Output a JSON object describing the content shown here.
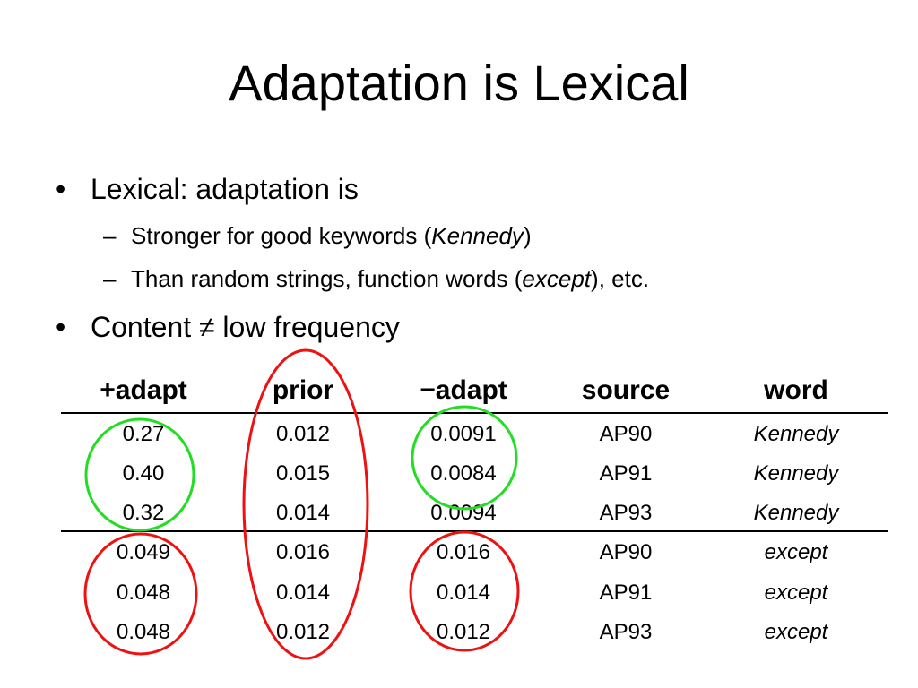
{
  "slide": {
    "title": "Adaptation is Lexical",
    "bullet_mark": "•",
    "dash_mark": "–",
    "bullets": [
      {
        "text": "Lexical: adaptation is"
      },
      {
        "text": "Content ≠ low frequency"
      }
    ],
    "subs": [
      {
        "before": "Stronger for good keywords (",
        "italic": "Kennedy",
        "after": ")"
      },
      {
        "before": "Than random strings, function words (",
        "italic": "except",
        "after": "), etc."
      }
    ]
  },
  "table": {
    "headers": [
      "+adapt",
      "prior",
      "−adapt",
      "source",
      "word"
    ],
    "rows": [
      [
        "0.27",
        "0.012",
        "0.0091",
        "AP90",
        "Kennedy"
      ],
      [
        "0.40",
        "0.015",
        "0.0084",
        "AP91",
        "Kennedy"
      ],
      [
        "0.32",
        "0.014",
        "0.0094",
        "AP93",
        "Kennedy"
      ],
      [
        "0.049",
        "0.016",
        "0.016",
        "AP90",
        "except"
      ],
      [
        "0.048",
        "0.014",
        "0.014",
        "AP91",
        "except"
      ],
      [
        "0.048",
        "0.012",
        "0.012",
        "AP93",
        "except"
      ]
    ]
  },
  "annotations": {
    "green_color": "#22dd22",
    "red_color": "#ee1111"
  }
}
